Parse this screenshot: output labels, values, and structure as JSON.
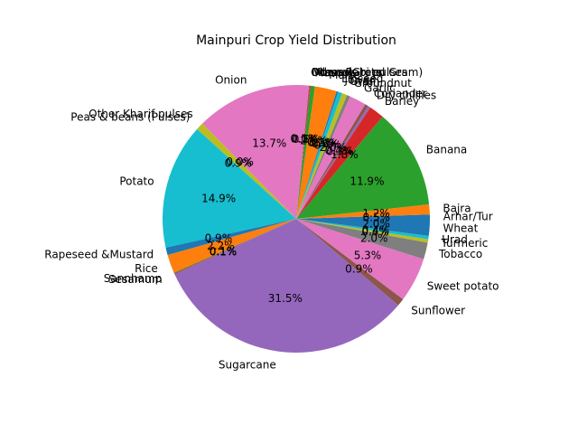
{
  "chart_data": {
    "type": "pie",
    "title": "Mainpuri Crop Yield Distribution",
    "slices": [
      {
        "label": "Arhar/Tur",
        "value": 0.5,
        "pct_text": "0.5%"
      },
      {
        "label": "Bajra",
        "value": 1.2,
        "pct_text": "1.2%"
      },
      {
        "label": "Banana",
        "value": 11.9,
        "pct_text": "11.9%"
      },
      {
        "label": "Barley",
        "value": 1.8,
        "pct_text": "1.8%"
      },
      {
        "label": "Dry chillies",
        "value": 0.3,
        "pct_text": "0.3%"
      },
      {
        "label": "Coriander",
        "value": 0.4,
        "pct_text": "0.4%"
      },
      {
        "label": "Garlic",
        "value": 2.0,
        "pct_text": "2.0%"
      },
      {
        "label": "Groundnut",
        "value": 0.4,
        "pct_text": "0.4%"
      },
      {
        "label": "Gram",
        "value": 0.6,
        "pct_text": "0.6%"
      },
      {
        "label": "Jowar",
        "value": 0.5,
        "pct_text": "0.5%"
      },
      {
        "label": "Linseed",
        "value": 0.2,
        "pct_text": "0.2%"
      },
      {
        "label": "Maize",
        "value": 2.6,
        "pct_text": "2.6%"
      },
      {
        "label": "Masoor",
        "value": 0.5,
        "pct_text": "0.5%"
      },
      {
        "label": "Moong(Green Gram)",
        "value": 0.1,
        "pct_text": "0.1%"
      },
      {
        "label": "Other Rabi pulses",
        "value": 0.0,
        "pct_text": "0.0%"
      },
      {
        "label": "Oilseeds total",
        "value": 0.1,
        "pct_text": "0.1%"
      },
      {
        "label": "Onion",
        "value": 13.7,
        "pct_text": "13.7%"
      },
      {
        "label": "Other Kharif pulses",
        "value": 0.0,
        "pct_text": "0.0%"
      },
      {
        "label": "Peas & beans (Pulses)",
        "value": 0.9,
        "pct_text": "0.9%"
      },
      {
        "label": "Potato",
        "value": 14.9,
        "pct_text": "14.9%"
      },
      {
        "label": "Rapeseed &Mustard",
        "value": 0.9,
        "pct_text": "0.9%"
      },
      {
        "label": "Rice",
        "value": 2.2,
        "pct_text": "2.2%"
      },
      {
        "label": "Sannhamp",
        "value": 0.1,
        "pct_text": "0.1%"
      },
      {
        "label": "Sesamum",
        "value": 0.1,
        "pct_text": "0.1%"
      },
      {
        "label": "Sugarcane",
        "value": 31.5,
        "pct_text": "31.5%"
      },
      {
        "label": "Sunflower",
        "value": 0.9,
        "pct_text": "0.9%"
      },
      {
        "label": "Sweet potato",
        "value": 5.3,
        "pct_text": "5.3%"
      },
      {
        "label": "Tobacco",
        "value": 2.0,
        "pct_text": "2.0%"
      },
      {
        "label": "Turmeric",
        "value": 0.4,
        "pct_text": "0.4%"
      },
      {
        "label": "Urad",
        "value": 0.4,
        "pct_text": "0.4%"
      },
      {
        "label": "Wheat",
        "value": 2.0,
        "pct_text": "2.0%"
      }
    ],
    "colors": [
      "#1f77b4",
      "#ff7f0e",
      "#2ca02c",
      "#d62728",
      "#9467bd",
      "#8c564b",
      "#e377c2",
      "#7f7f7f",
      "#bcbd22",
      "#17becf"
    ],
    "start_angle_deg": 0,
    "direction": "counterclockwise",
    "legend": "none"
  }
}
